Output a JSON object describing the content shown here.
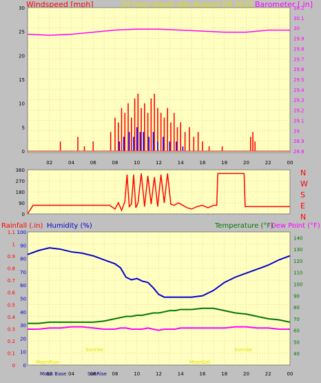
{
  "header": {
    "left": "Windspeed [mph]",
    "center": "24 hour graph day   August 08 2015",
    "right": "Barometer [.in]"
  },
  "colors": {
    "bg": "#c0c0c0",
    "plot": "#ffffc0",
    "grid": "#e8c8a0",
    "wind": "#ff0000",
    "gust": "#0000ff",
    "baro": "#ff00ff",
    "dir": "#ff0000",
    "humidity": "#0000cc",
    "temp": "#007700",
    "dew": "#ff00ff",
    "rain": "#ff0000",
    "yellow_text": "#e0e000"
  },
  "hour_ticks": [
    "02",
    "04",
    "06",
    "08",
    "10",
    "12",
    "14",
    "16",
    "18",
    "20",
    "22",
    "00"
  ],
  "bottom_labels": {
    "moon_base": "Moon Base",
    "sunrise_bottom": "SunRise",
    "sunrise_1": "Sunrise",
    "sunrise_2": "Sunrise",
    "moonrise": "MoonRise",
    "moonset": "MoonSet"
  },
  "chart_data": [
    {
      "id": "wind_baro",
      "type": "line",
      "left_axis": {
        "label": "Windspeed [mph]",
        "ylim": [
          0,
          30
        ],
        "ticks": [
          "0",
          "5",
          "10",
          "15",
          "20",
          "25",
          "30"
        ]
      },
      "right_axis": {
        "label": "Barometer [.in]",
        "ylim": [
          28.8,
          30.2
        ],
        "ticks": [
          "28.8",
          "28.9",
          "29",
          "29.1",
          "29.2",
          "29.3",
          "29.4",
          "29.5",
          "29.6",
          "29.7",
          "29.8",
          "29.9",
          "30",
          "30.1",
          "30.2"
        ]
      },
      "x": [
        0,
        2,
        4,
        6,
        8,
        10,
        12,
        14,
        16,
        18,
        20,
        22,
        24
      ],
      "series": [
        {
          "name": "Barometer",
          "axis": "right",
          "values": [
            29.94,
            29.93,
            29.94,
            29.96,
            29.98,
            29.99,
            29.99,
            29.98,
            29.97,
            29.96,
            29.96,
            29.98,
            29.98
          ]
        }
      ],
      "wind_bars": [
        {
          "x": 3.0,
          "v": 2
        },
        {
          "x": 4.6,
          "v": 3
        },
        {
          "x": 5.2,
          "v": 1
        },
        {
          "x": 6.0,
          "v": 2
        },
        {
          "x": 7.6,
          "v": 4
        },
        {
          "x": 8.0,
          "v": 7
        },
        {
          "x": 8.3,
          "v": 6
        },
        {
          "x": 8.6,
          "v": 9
        },
        {
          "x": 8.9,
          "v": 8
        },
        {
          "x": 9.2,
          "v": 10
        },
        {
          "x": 9.5,
          "v": 7
        },
        {
          "x": 9.8,
          "v": 11
        },
        {
          "x": 10.1,
          "v": 12
        },
        {
          "x": 10.4,
          "v": 9
        },
        {
          "x": 10.7,
          "v": 10
        },
        {
          "x": 11.0,
          "v": 8
        },
        {
          "x": 11.3,
          "v": 11
        },
        {
          "x": 11.6,
          "v": 12
        },
        {
          "x": 11.9,
          "v": 9
        },
        {
          "x": 12.2,
          "v": 8
        },
        {
          "x": 12.5,
          "v": 7
        },
        {
          "x": 12.8,
          "v": 9
        },
        {
          "x": 13.1,
          "v": 6
        },
        {
          "x": 13.4,
          "v": 8
        },
        {
          "x": 13.7,
          "v": 5
        },
        {
          "x": 14.0,
          "v": 6
        },
        {
          "x": 14.4,
          "v": 4
        },
        {
          "x": 14.8,
          "v": 5
        },
        {
          "x": 15.2,
          "v": 3
        },
        {
          "x": 15.6,
          "v": 4
        },
        {
          "x": 16.0,
          "v": 2
        },
        {
          "x": 16.6,
          "v": 1
        },
        {
          "x": 17.8,
          "v": 1
        },
        {
          "x": 20.4,
          "v": 3
        },
        {
          "x": 20.6,
          "v": 4
        },
        {
          "x": 20.8,
          "v": 2
        }
      ],
      "gust_bars": [
        {
          "x": 8.4,
          "v": 2
        },
        {
          "x": 8.8,
          "v": 3
        },
        {
          "x": 9.3,
          "v": 4
        },
        {
          "x": 9.7,
          "v": 3
        },
        {
          "x": 10.0,
          "v": 5
        },
        {
          "x": 10.3,
          "v": 4
        },
        {
          "x": 10.6,
          "v": 4
        },
        {
          "x": 11.1,
          "v": 3
        },
        {
          "x": 11.5,
          "v": 4
        },
        {
          "x": 11.9,
          "v": 2
        },
        {
          "x": 12.4,
          "v": 3
        },
        {
          "x": 13.0,
          "v": 2
        },
        {
          "x": 13.6,
          "v": 2
        },
        {
          "x": 14.2,
          "v": 1
        }
      ]
    },
    {
      "id": "direction",
      "type": "line",
      "left_axis": {
        "ylim": [
          0,
          360
        ],
        "ticks": [
          "0",
          "90",
          "180",
          "270",
          "360"
        ]
      },
      "right_labels": [
        "N",
        "W",
        "S",
        "E",
        "N"
      ],
      "x": [
        0,
        0.5,
        7.5,
        8,
        8.3,
        8.6,
        8.9,
        9.1,
        9.3,
        9.5,
        9.7,
        9.9,
        10.1,
        10.4,
        10.7,
        11.0,
        11.3,
        11.6,
        11.9,
        12.2,
        12.5,
        12.8,
        13.1,
        13.4,
        13.8,
        14.2,
        14.6,
        15.0,
        15.5,
        16.0,
        16.5,
        17.0,
        17.3,
        17.4,
        19.8,
        19.9,
        24
      ],
      "values": [
        0,
        70,
        70,
        40,
        90,
        30,
        100,
        320,
        60,
        80,
        320,
        50,
        90,
        330,
        60,
        310,
        80,
        300,
        60,
        320,
        90,
        330,
        80,
        70,
        90,
        70,
        50,
        40,
        60,
        70,
        50,
        70,
        70,
        330,
        330,
        60,
        60
      ]
    },
    {
      "id": "temp_hum_rain",
      "type": "line",
      "rain_axis": {
        "label": "Rainfall (.in)",
        "ylim": [
          0,
          1.1
        ],
        "ticks": [
          "0",
          "0.1",
          "0.2",
          "0.3",
          "0.4",
          "0.5",
          "0.6",
          "0.7",
          "0.8",
          "0.9",
          "1",
          "1.1"
        ]
      },
      "humidity_axis": {
        "label": "Humidity (%)",
        "ylim": [
          0,
          100
        ],
        "ticks": [
          "0",
          "10",
          "20",
          "30",
          "40",
          "50",
          "60",
          "70",
          "80",
          "90",
          "100"
        ]
      },
      "temp_axis": {
        "label": "Temperature (°F)",
        "ylim": [
          30,
          145
        ],
        "ticks": [
          "40",
          "50",
          "60",
          "70",
          "80",
          "90",
          "100",
          "110",
          "120",
          "130",
          "140"
        ]
      },
      "dew_label": "Dew Point (°F)",
      "x": [
        0,
        1,
        2,
        3,
        4,
        5,
        6,
        7,
        8,
        8.5,
        9,
        9.5,
        10,
        10.5,
        11,
        11.5,
        12,
        12.5,
        13,
        13.5,
        14,
        15,
        16,
        17,
        18,
        19,
        20,
        21,
        22,
        23,
        24
      ],
      "series": [
        {
          "name": "Humidity",
          "axis": "humidity",
          "values": [
            83,
            86,
            88,
            87,
            85,
            84,
            82,
            79,
            76,
            73,
            66,
            64,
            65,
            63,
            62,
            58,
            53,
            51,
            51,
            51,
            51,
            51,
            52,
            56,
            62,
            66,
            69,
            72,
            75,
            79,
            82
          ]
        },
        {
          "name": "Temperature",
          "axis": "temp",
          "values": [
            66,
            66,
            67,
            67,
            67,
            67,
            67,
            68,
            70,
            71,
            72,
            72,
            73,
            73,
            74,
            75,
            75,
            76,
            77,
            77,
            78,
            78,
            79,
            79,
            77,
            75,
            74,
            72,
            70,
            69,
            67
          ]
        },
        {
          "name": "Dew Point",
          "axis": "temp",
          "values": [
            61,
            61,
            62,
            62,
            63,
            63,
            62,
            61,
            61,
            62,
            62,
            61,
            61,
            61,
            62,
            61,
            60,
            61,
            61,
            61,
            62,
            62,
            62,
            62,
            62,
            63,
            63,
            62,
            62,
            61,
            61
          ]
        }
      ]
    }
  ]
}
